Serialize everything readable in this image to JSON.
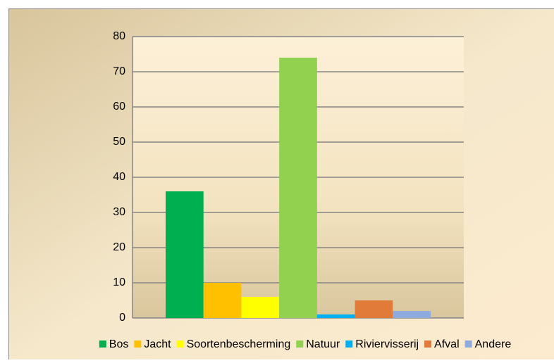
{
  "chart_data": {
    "type": "bar",
    "categories": [
      null
    ],
    "series": [
      {
        "name": "Bos",
        "color": "#00b050",
        "values": [
          36
        ]
      },
      {
        "name": "Jacht",
        "color": "#ffc000",
        "values": [
          10
        ]
      },
      {
        "name": "Soortenbescherming",
        "color": "#ffff00",
        "values": [
          6
        ]
      },
      {
        "name": "Natuur",
        "color": "#92d050",
        "values": [
          74
        ]
      },
      {
        "name": "Riviervisserij",
        "color": "#00b0f0",
        "values": [
          1
        ]
      },
      {
        "name": "Afval",
        "color": "#e07b39",
        "values": [
          5
        ]
      },
      {
        "name": "Andere",
        "color": "#8faadc",
        "values": [
          2
        ]
      }
    ],
    "ylim": [
      0,
      80
    ],
    "yticks": [
      0,
      10,
      20,
      30,
      40,
      50,
      60,
      70,
      80
    ],
    "grid": true,
    "legend": "bottom"
  }
}
